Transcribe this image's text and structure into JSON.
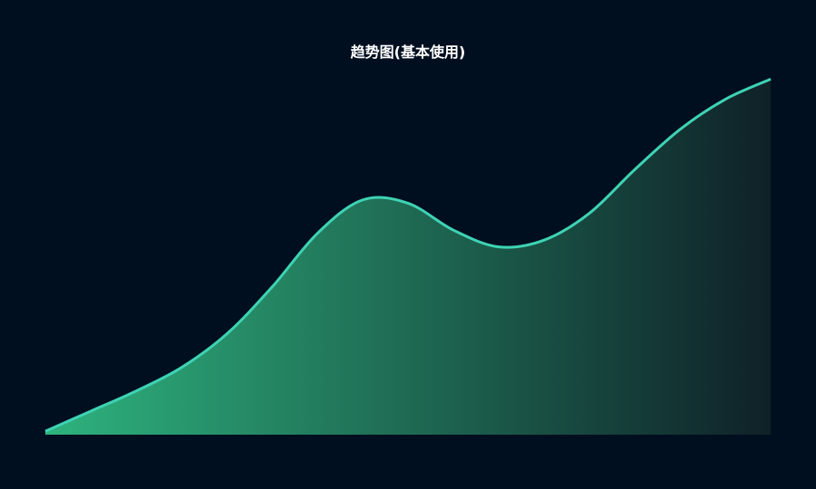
{
  "chart_data": {
    "type": "area",
    "title": "趋势图(基本使用)",
    "xlabel": "",
    "ylabel": "",
    "x": [
      0,
      1,
      2,
      3,
      4,
      5,
      6,
      7,
      8,
      9,
      10,
      11,
      12,
      13,
      14,
      15,
      16
    ],
    "series": [
      {
        "values": [
          1,
          7,
          13,
          20,
          30,
          44,
          60,
          70,
          69,
          61,
          56,
          58,
          66,
          79,
          91,
          100,
          106
        ]
      }
    ],
    "ylim": [
      0,
      108
    ],
    "grid": false,
    "colors": {
      "line": "#3ed3b4",
      "fill_start": "#2eb37e",
      "fill_end": "#0f2128",
      "background": "#000f1f"
    }
  }
}
